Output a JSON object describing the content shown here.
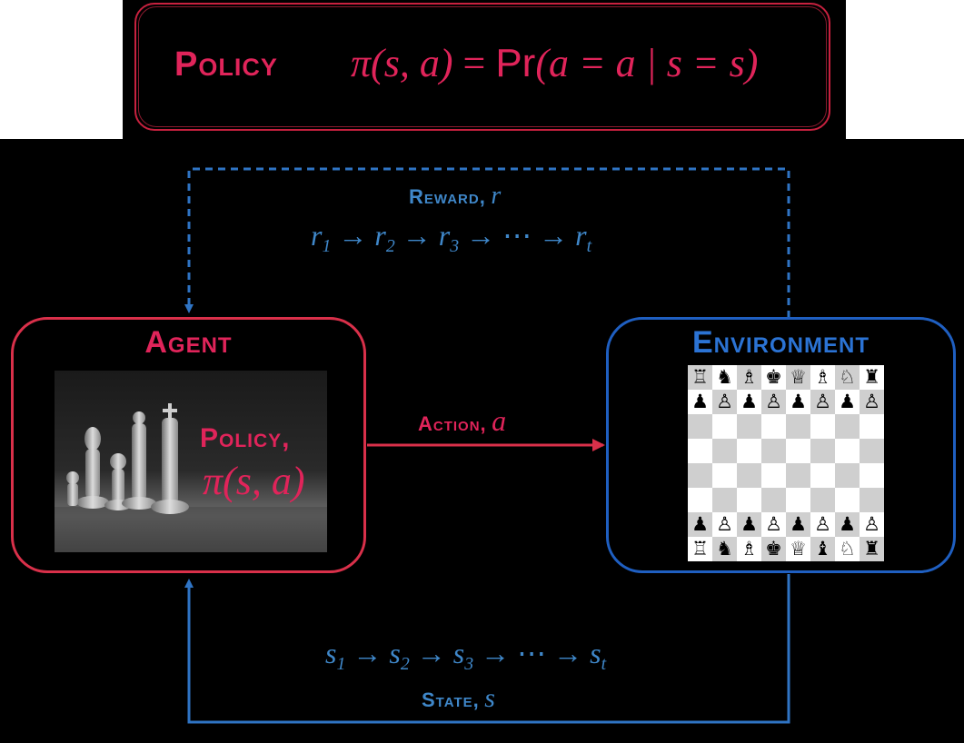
{
  "policy_banner": {
    "title": "Policy",
    "formula_lhs": "π(s, a)",
    "formula_eq": "=",
    "formula_pr": "Pr",
    "formula_rhs": "(a = a | s = s)"
  },
  "reward": {
    "label": "Reward,",
    "symbol": "r",
    "sequence": [
      {
        "base": "r",
        "sub": "1"
      },
      {
        "base": "r",
        "sub": "2"
      },
      {
        "base": "r",
        "sub": "3"
      },
      {
        "base": "⋯",
        "sub": ""
      },
      {
        "base": "r",
        "sub": "t"
      }
    ]
  },
  "agent": {
    "title": "Agent",
    "policy_label": "Policy,",
    "policy_formula": "π(s, a)"
  },
  "action": {
    "label": "Action,",
    "symbol": "a"
  },
  "environment": {
    "title": "Environment",
    "board": [
      [
        "♖",
        "♞",
        "♗",
        "♚",
        "♕",
        "♗",
        "♘",
        "♜"
      ],
      [
        "♟",
        "♙",
        "♟",
        "♙",
        "♟",
        "♙",
        "♟",
        "♙"
      ],
      [
        "",
        "",
        "",
        "",
        "",
        "",
        "",
        ""
      ],
      [
        "",
        "",
        "",
        "",
        "",
        "",
        "",
        ""
      ],
      [
        "",
        "",
        "",
        "",
        "",
        "",
        "",
        ""
      ],
      [
        "",
        "",
        "",
        "",
        "",
        "",
        "",
        ""
      ],
      [
        "♟",
        "♙",
        "♟",
        "♙",
        "♟",
        "♙",
        "♟",
        "♙"
      ],
      [
        "♖",
        "♞",
        "♗",
        "♚",
        "♕",
        "♝",
        "♘",
        "♜"
      ]
    ]
  },
  "state": {
    "label": "State,",
    "symbol": "s",
    "sequence": [
      {
        "base": "s",
        "sub": "1"
      },
      {
        "base": "s",
        "sub": "2"
      },
      {
        "base": "s",
        "sub": "3"
      },
      {
        "base": "⋯",
        "sub": ""
      },
      {
        "base": "s",
        "sub": "t"
      }
    ]
  },
  "colors": {
    "agent_red": "#e0245a",
    "env_blue": "#2b73d4",
    "signal_blue": "#3f87c9",
    "background": "#000000"
  }
}
